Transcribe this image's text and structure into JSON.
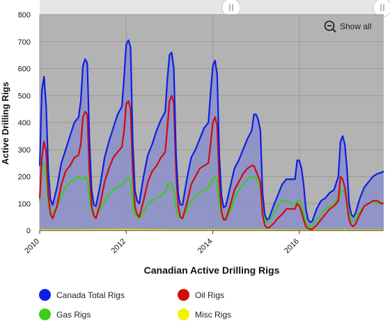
{
  "show_all_label": "Show all",
  "chart_data": {
    "type": "line",
    "title": "",
    "xlabel": "Canadian Active Drilling Rigs",
    "ylabel": "Active Drilling Rigs",
    "xlim": [
      2010.0,
      2017.95
    ],
    "ylim": [
      0,
      800
    ],
    "x_ticks": [
      "2010",
      "2012",
      "2014",
      "2016"
    ],
    "y_ticks": [
      "0",
      "100",
      "200",
      "300",
      "400",
      "500",
      "600",
      "700",
      "800"
    ],
    "grid": true,
    "legend_position": "bottom",
    "colors": {
      "plot_bg": "#b3b3b3",
      "area": "#8c90c8",
      "navigator": "#e6e6e6",
      "grid": "#999999"
    },
    "series": [
      {
        "name": "Canada Total Rigs",
        "color": "#0b1ee6",
        "x": [
          2010.0,
          2010.05,
          2010.1,
          2010.15,
          2010.2,
          2010.25,
          2010.3,
          2010.4,
          2010.5,
          2010.6,
          2010.7,
          2010.8,
          2010.9,
          2010.95,
          2011.0,
          2011.05,
          2011.1,
          2011.15,
          2011.2,
          2011.25,
          2011.3,
          2011.4,
          2011.5,
          2011.6,
          2011.7,
          2011.8,
          2011.9,
          2011.95,
          2012.0,
          2012.05,
          2012.1,
          2012.15,
          2012.2,
          2012.25,
          2012.3,
          2012.4,
          2012.5,
          2012.6,
          2012.7,
          2012.8,
          2012.9,
          2012.95,
          2013.0,
          2013.05,
          2013.1,
          2013.15,
          2013.2,
          2013.25,
          2013.3,
          2013.4,
          2013.5,
          2013.6,
          2013.7,
          2013.8,
          2013.9,
          2013.95,
          2014.0,
          2014.05,
          2014.1,
          2014.15,
          2014.2,
          2014.25,
          2014.3,
          2014.4,
          2014.5,
          2014.6,
          2014.7,
          2014.8,
          2014.9,
          2014.95,
          2015.0,
          2015.05,
          2015.1,
          2015.15,
          2015.2,
          2015.25,
          2015.3,
          2015.4,
          2015.5,
          2015.6,
          2015.7,
          2015.8,
          2015.9,
          2015.95,
          2016.0,
          2016.05,
          2016.1,
          2016.15,
          2016.2,
          2016.25,
          2016.3,
          2016.4,
          2016.5,
          2016.6,
          2016.7,
          2016.8,
          2016.9,
          2016.95,
          2017.0,
          2017.05,
          2017.1,
          2017.15,
          2017.2,
          2017.25,
          2017.3,
          2017.4,
          2017.5,
          2017.6,
          2017.7,
          2017.8,
          2017.9,
          2017.95
        ],
        "values": [
          240,
          520,
          570,
          460,
          220,
          115,
          95,
          160,
          250,
          300,
          350,
          400,
          420,
          480,
          610,
          635,
          620,
          330,
          150,
          95,
          90,
          170,
          270,
          330,
          380,
          430,
          460,
          570,
          690,
          705,
          680,
          330,
          150,
          110,
          100,
          200,
          280,
          320,
          370,
          410,
          440,
          560,
          650,
          660,
          600,
          290,
          140,
          95,
          95,
          190,
          270,
          300,
          340,
          380,
          400,
          510,
          610,
          630,
          580,
          280,
          130,
          85,
          90,
          160,
          230,
          260,
          300,
          340,
          370,
          430,
          430,
          410,
          370,
          140,
          60,
          40,
          45,
          90,
          130,
          170,
          190,
          190,
          190,
          260,
          260,
          230,
          170,
          80,
          40,
          30,
          35,
          80,
          110,
          120,
          140,
          150,
          200,
          330,
          350,
          320,
          230,
          100,
          60,
          50,
          65,
          120,
          160,
          180,
          200,
          210,
          215,
          220
        ]
      },
      {
        "name": "Oil Rigs",
        "color": "#d20a0a",
        "x": [
          2010.0,
          2010.05,
          2010.1,
          2010.15,
          2010.2,
          2010.25,
          2010.3,
          2010.4,
          2010.5,
          2010.6,
          2010.7,
          2010.8,
          2010.9,
          2010.95,
          2011.0,
          2011.05,
          2011.1,
          2011.15,
          2011.2,
          2011.25,
          2011.3,
          2011.4,
          2011.5,
          2011.6,
          2011.7,
          2011.8,
          2011.9,
          2011.95,
          2012.0,
          2012.05,
          2012.1,
          2012.15,
          2012.2,
          2012.25,
          2012.3,
          2012.4,
          2012.5,
          2012.6,
          2012.7,
          2012.8,
          2012.9,
          2012.95,
          2013.0,
          2013.05,
          2013.1,
          2013.15,
          2013.2,
          2013.25,
          2013.3,
          2013.4,
          2013.5,
          2013.6,
          2013.7,
          2013.8,
          2013.9,
          2013.95,
          2014.0,
          2014.05,
          2014.1,
          2014.15,
          2014.2,
          2014.25,
          2014.3,
          2014.4,
          2014.5,
          2014.6,
          2014.7,
          2014.8,
          2014.9,
          2014.95,
          2015.0,
          2015.05,
          2015.1,
          2015.15,
          2015.2,
          2015.25,
          2015.3,
          2015.4,
          2015.5,
          2015.6,
          2015.7,
          2015.8,
          2015.9,
          2015.95,
          2016.0,
          2016.05,
          2016.1,
          2016.15,
          2016.2,
          2016.25,
          2016.3,
          2016.4,
          2016.5,
          2016.6,
          2016.7,
          2016.8,
          2016.9,
          2016.95,
          2017.0,
          2017.05,
          2017.1,
          2017.15,
          2017.2,
          2017.25,
          2017.3,
          2017.4,
          2017.5,
          2017.6,
          2017.7,
          2017.8,
          2017.9,
          2017.95
        ],
        "values": [
          120,
          270,
          330,
          290,
          130,
          60,
          45,
          90,
          170,
          220,
          240,
          270,
          280,
          320,
          420,
          440,
          430,
          210,
          90,
          55,
          45,
          100,
          180,
          230,
          270,
          290,
          310,
          370,
          470,
          480,
          450,
          220,
          90,
          60,
          50,
          110,
          180,
          220,
          240,
          270,
          290,
          380,
          480,
          500,
          470,
          220,
          90,
          50,
          45,
          100,
          170,
          200,
          230,
          240,
          250,
          320,
          400,
          420,
          390,
          180,
          70,
          40,
          40,
          90,
          150,
          180,
          210,
          230,
          240,
          240,
          220,
          200,
          180,
          60,
          20,
          10,
          10,
          25,
          45,
          60,
          80,
          80,
          80,
          100,
          90,
          70,
          40,
          15,
          8,
          5,
          5,
          20,
          40,
          60,
          80,
          90,
          110,
          200,
          190,
          160,
          100,
          40,
          20,
          15,
          25,
          60,
          90,
          100,
          110,
          110,
          100,
          100
        ]
      },
      {
        "name": "Gas Rigs",
        "color": "#3ccc1a",
        "x": [
          2010.0,
          2010.05,
          2010.1,
          2010.15,
          2010.2,
          2010.25,
          2010.3,
          2010.4,
          2010.5,
          2010.6,
          2010.7,
          2010.8,
          2010.9,
          2010.95,
          2011.0,
          2011.05,
          2011.1,
          2011.15,
          2011.2,
          2011.25,
          2011.3,
          2011.4,
          2011.5,
          2011.6,
          2011.7,
          2011.8,
          2011.9,
          2011.95,
          2012.0,
          2012.05,
          2012.1,
          2012.15,
          2012.2,
          2012.25,
          2012.3,
          2012.4,
          2012.5,
          2012.6,
          2012.7,
          2012.8,
          2012.9,
          2012.95,
          2013.0,
          2013.05,
          2013.1,
          2013.15,
          2013.2,
          2013.25,
          2013.3,
          2013.4,
          2013.5,
          2013.6,
          2013.7,
          2013.8,
          2013.9,
          2013.95,
          2014.0,
          2014.05,
          2014.1,
          2014.15,
          2014.2,
          2014.25,
          2014.3,
          2014.4,
          2014.5,
          2014.6,
          2014.7,
          2014.8,
          2014.9,
          2014.95,
          2015.0,
          2015.05,
          2015.1,
          2015.15,
          2015.2,
          2015.25,
          2015.3,
          2015.4,
          2015.5,
          2015.6,
          2015.7,
          2015.8,
          2015.9,
          2015.95,
          2016.0,
          2016.05,
          2016.1,
          2016.15,
          2016.2,
          2016.25,
          2016.3,
          2016.4,
          2016.5,
          2016.6,
          2016.7,
          2016.8,
          2016.9,
          2016.95,
          2017.0,
          2017.05,
          2017.1,
          2017.15,
          2017.2,
          2017.25,
          2017.3,
          2017.4,
          2017.5,
          2017.6,
          2017.7,
          2017.8,
          2017.9,
          2017.95
        ],
        "values": [
          110,
          240,
          250,
          200,
          100,
          70,
          65,
          90,
          130,
          160,
          180,
          190,
          200,
          190,
          190,
          200,
          190,
          120,
          70,
          55,
          50,
          80,
          110,
          130,
          150,
          160,
          170,
          180,
          190,
          195,
          190,
          110,
          60,
          50,
          45,
          70,
          100,
          110,
          120,
          130,
          140,
          170,
          175,
          170,
          150,
          80,
          55,
          45,
          45,
          75,
          110,
          130,
          140,
          150,
          160,
          180,
          190,
          200,
          180,
          100,
          60,
          45,
          45,
          70,
          120,
          150,
          170,
          190,
          200,
          200,
          195,
          180,
          160,
          80,
          40,
          30,
          35,
          60,
          90,
          110,
          110,
          100,
          90,
          110,
          110,
          90,
          60,
          30,
          20,
          15,
          20,
          40,
          60,
          80,
          90,
          100,
          120,
          140,
          150,
          140,
          110,
          60,
          40,
          35,
          45,
          70,
          90,
          100,
          110,
          100,
          100,
          105
        ]
      },
      {
        "name": "Misc Rigs",
        "color": "#f2f200",
        "x": [
          2010.0,
          2011.0,
          2012.0,
          2013.0,
          2014.0,
          2015.0,
          2016.0,
          2017.0,
          2017.05,
          2017.1,
          2017.95
        ],
        "values": [
          2,
          2,
          3,
          2,
          2,
          2,
          1,
          1,
          3,
          1,
          1
        ]
      }
    ]
  }
}
